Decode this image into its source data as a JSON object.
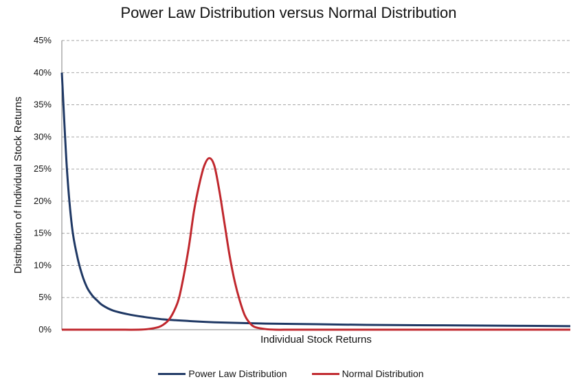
{
  "chart_data": {
    "type": "line",
    "title": "Power Law Distribution versus Normal Distribution",
    "xlabel": "Individual Stock Returns",
    "ylabel": "Distribution of Individual Stock Returns",
    "ylim": [
      0,
      45
    ],
    "yticks": [
      "0%",
      "5%",
      "10%",
      "15%",
      "20%",
      "25%",
      "30%",
      "35%",
      "40%",
      "45%"
    ],
    "grid": true,
    "legend_position": "bottom",
    "series": [
      {
        "name": "Power Law Distribution",
        "color": "#1f3864",
        "x": [
          0,
          1,
          2,
          3,
          4,
          5,
          6,
          7,
          8,
          10,
          13,
          16,
          20,
          25,
          30,
          40,
          50,
          60,
          70,
          80,
          90,
          100
        ],
        "y": [
          40,
          25,
          16,
          11.5,
          8.5,
          6.5,
          5.3,
          4.5,
          3.8,
          3.0,
          2.4,
          2.0,
          1.6,
          1.35,
          1.15,
          0.95,
          0.85,
          0.75,
          0.7,
          0.65,
          0.6,
          0.55
        ]
      },
      {
        "name": "Normal Distribution",
        "color": "#c0272d",
        "x": [
          0,
          10,
          15,
          17,
          19,
          20,
          21,
          22,
          23,
          24,
          25,
          26,
          27,
          28,
          29,
          30,
          31,
          32,
          33,
          34,
          35,
          36,
          37,
          38,
          40,
          42,
          45,
          50,
          60,
          70,
          80,
          90,
          100
        ],
        "y": [
          0,
          0,
          0,
          0.1,
          0.4,
          0.8,
          1.5,
          2.8,
          4.8,
          8.5,
          13,
          18.5,
          22.5,
          25.5,
          26.7,
          25.5,
          21.5,
          16.5,
          11.5,
          7.5,
          4.5,
          2.2,
          1.0,
          0.4,
          0.1,
          0,
          0,
          0,
          0,
          0,
          0,
          0,
          0
        ]
      }
    ]
  }
}
